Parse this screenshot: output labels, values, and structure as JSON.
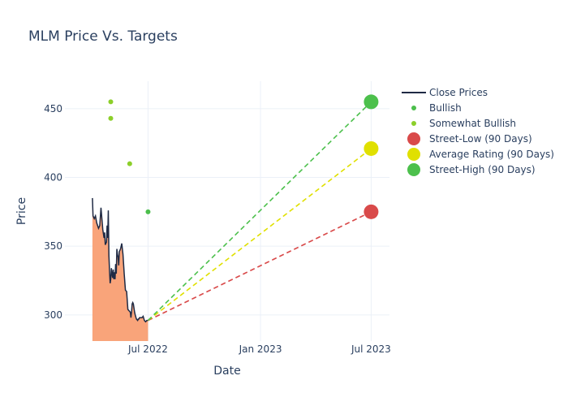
{
  "chart_data": {
    "type": "line",
    "title": "MLM Price Vs. Targets",
    "xlabel": "Date",
    "ylabel": "Price",
    "xlim": [
      "2022-02-15",
      "2023-07-31"
    ],
    "ylim": [
      281,
      470
    ],
    "x_ticks": [
      {
        "date": "2022-07-01",
        "label": "Jul 2022"
      },
      {
        "date": "2023-01-01",
        "label": "Jan 2023"
      },
      {
        "date": "2023-07-01",
        "label": "Jul 2023"
      }
    ],
    "y_ticks": [
      300,
      350,
      400,
      450
    ],
    "legend_position": "top-right",
    "colors": {
      "close": "#1f2a44",
      "close_fill": "#f9a47a",
      "bullish": "#4cbe4c",
      "somewhat_bullish": "#8ccf2a",
      "street_low": "#d94a4a",
      "average": "#e0e000",
      "street_high": "#4cc04c"
    },
    "series": [
      {
        "name": "Close Prices",
        "kind": "line",
        "x": [
          "2022-04-01",
          "2022-04-02",
          "2022-04-04",
          "2022-04-06",
          "2022-04-08",
          "2022-04-11",
          "2022-04-13",
          "2022-04-15",
          "2022-04-18",
          "2022-04-20",
          "2022-04-21",
          "2022-04-22",
          "2022-04-24",
          "2022-04-25",
          "2022-04-26",
          "2022-04-27",
          "2022-04-28",
          "2022-04-29",
          "2022-04-30",
          "2022-05-01",
          "2022-05-02",
          "2022-05-03",
          "2022-05-04",
          "2022-05-05",
          "2022-05-06",
          "2022-05-07",
          "2022-05-08",
          "2022-05-09",
          "2022-05-10",
          "2022-05-11",
          "2022-05-12",
          "2022-05-13",
          "2022-05-14",
          "2022-05-15",
          "2022-05-17",
          "2022-05-19",
          "2022-05-21",
          "2022-05-23",
          "2022-05-25",
          "2022-05-27",
          "2022-05-29",
          "2022-05-31",
          "2022-06-02",
          "2022-06-03",
          "2022-06-04",
          "2022-06-05",
          "2022-06-06",
          "2022-06-07",
          "2022-06-08",
          "2022-06-09",
          "2022-06-10",
          "2022-06-12",
          "2022-06-14",
          "2022-06-15",
          "2022-06-16",
          "2022-06-17",
          "2022-06-19",
          "2022-06-21",
          "2022-06-23",
          "2022-06-25",
          "2022-06-27",
          "2022-06-29",
          "2022-07-01"
        ],
        "y": [
          385,
          372,
          370,
          372,
          367,
          363,
          365,
          378,
          362,
          356,
          360,
          351,
          353,
          365,
          356,
          376,
          343,
          332,
          323,
          326,
          334,
          330,
          327,
          333,
          326,
          331,
          326,
          337,
          330,
          348,
          344,
          342,
          336,
          346,
          348,
          352,
          344,
          330,
          318,
          317,
          304,
          303,
          302,
          298,
          302,
          308,
          309,
          308,
          305,
          302,
          300,
          297,
          296,
          297,
          297,
          298,
          298,
          298,
          299,
          296,
          295,
          296,
          296
        ]
      },
      {
        "name": "Bullish",
        "kind": "markers",
        "x": [
          "2022-07-01"
        ],
        "y": [
          375
        ]
      },
      {
        "name": "Somewhat Bullish",
        "kind": "markers",
        "x": [
          "2022-05-01",
          "2022-05-01",
          "2022-06-01"
        ],
        "y": [
          455,
          443,
          410
        ]
      },
      {
        "name": "Street-Low (90 Days)",
        "kind": "target",
        "x": [
          "2022-07-01",
          "2023-07-01"
        ],
        "y": [
          296,
          375
        ]
      },
      {
        "name": "Average Rating (90 Days)",
        "kind": "target",
        "x": [
          "2022-07-01",
          "2023-07-01"
        ],
        "y": [
          296,
          421
        ]
      },
      {
        "name": "Street-High (90 Days)",
        "kind": "target",
        "x": [
          "2022-07-01",
          "2023-07-01"
        ],
        "y": [
          296,
          455
        ]
      }
    ]
  }
}
